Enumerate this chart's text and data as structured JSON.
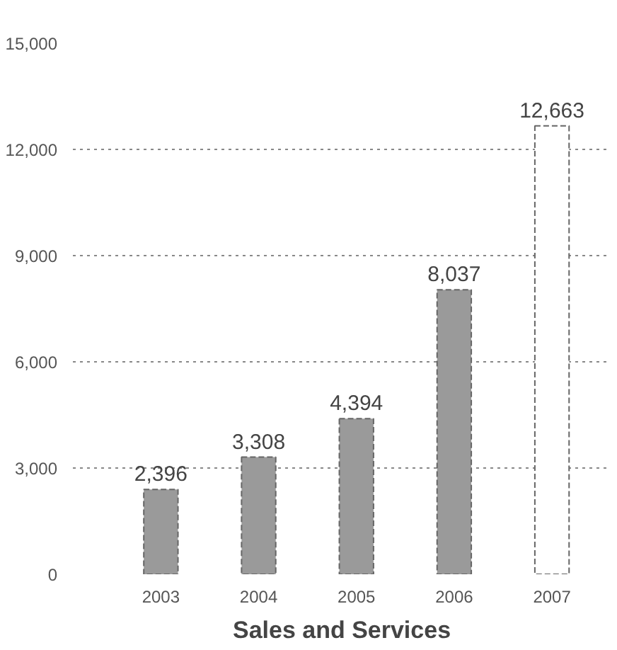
{
  "chart_data": {
    "type": "bar",
    "title": "Sales and Services",
    "categories": [
      "2003",
      "2004",
      "2005",
      "2006",
      "2007"
    ],
    "values": [
      2396,
      3308,
      4394,
      8037,
      12663
    ],
    "colors": [
      "#9a9a9a",
      "#9a9a9a",
      "#9a9a9a",
      "#9a9a9a",
      "#ffffff"
    ],
    "value_labels": [
      "2,396",
      "3,308",
      "4,394",
      "8,037",
      "12,663"
    ],
    "ylim": [
      0,
      15000
    ],
    "yticks": [
      {
        "value": 0,
        "label": "0"
      },
      {
        "value": 3000,
        "label": "3,000"
      },
      {
        "value": 6000,
        "label": "6,000"
      },
      {
        "value": 9000,
        "label": "9,000"
      },
      {
        "value": 12000,
        "label": "12,000"
      },
      {
        "value": 15000,
        "label": "15,000"
      }
    ],
    "grid": "y"
  }
}
